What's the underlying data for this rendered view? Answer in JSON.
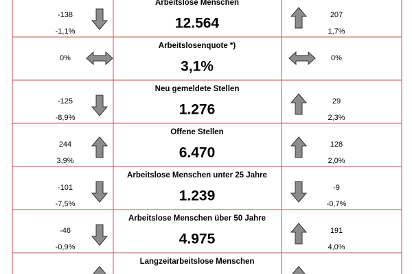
{
  "table": {
    "rows": [
      {
        "left": [
          "-138",
          "-1,1%"
        ],
        "title": "Arbeitslose Menschen",
        "value": "12.564",
        "right": [
          "207",
          "1,7%"
        ]
      },
      {
        "left": [
          "0%"
        ],
        "title": "Arbeitslosenquote *)",
        "value": "3,1%",
        "right": [
          "0%"
        ]
      },
      {
        "left": [
          "-125",
          "-8,9%"
        ],
        "title": "Neu gemeldete Stellen",
        "value": "1.276",
        "right": [
          "29",
          "2,3%"
        ]
      },
      {
        "left": [
          "244",
          "3,9%"
        ],
        "title": "Offene Stellen",
        "value": "6.470",
        "right": [
          "128",
          "2,0%"
        ]
      },
      {
        "left": [
          "-101",
          "-7,5%"
        ],
        "title": "Arbeitslose Menschen unter 25 Jahre",
        "value": "1.239",
        "right": [
          "-9",
          "-0,7%"
        ]
      },
      {
        "left": [
          "-46",
          "-0,9%"
        ],
        "title": "Arbeitslose Menschen über 50 Jahre",
        "value": "4.975",
        "right": [
          "191",
          "4,0%"
        ]
      },
      {
        "title": "Langzeitarbeitslose Menschen"
      }
    ]
  }
}
